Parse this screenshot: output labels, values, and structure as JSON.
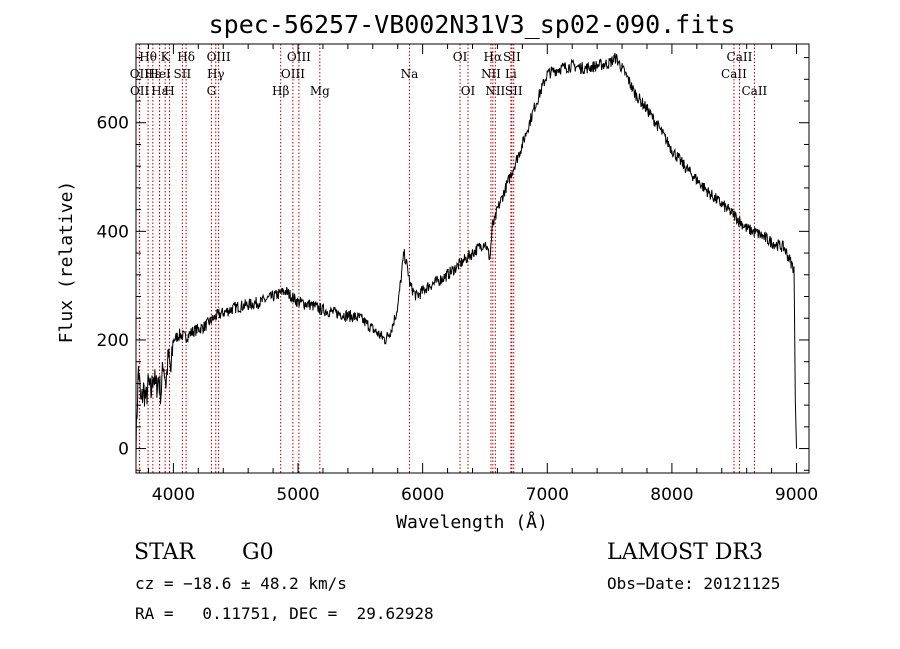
{
  "chart_data": {
    "type": "line",
    "title": "spec-56257-VB002N31V3_sp02-090.fits",
    "xlabel": "Wavelength (Å)",
    "ylabel": "Flux (relative)",
    "xlim": [
      3700,
      9100
    ],
    "ylim": [
      -45,
      745
    ],
    "xticks": [
      4000,
      5000,
      6000,
      7000,
      8000,
      9000
    ],
    "yticks": [
      0,
      200,
      400,
      600
    ],
    "series": [
      {
        "name": "flux",
        "x": [
          3700,
          3720,
          3740,
          3760,
          3780,
          3800,
          3820,
          3840,
          3860,
          3880,
          3900,
          3920,
          3940,
          3960,
          3980,
          4000,
          4050,
          4100,
          4150,
          4200,
          4250,
          4300,
          4350,
          4400,
          4450,
          4500,
          4600,
          4700,
          4800,
          4850,
          4900,
          5000,
          5100,
          5200,
          5300,
          5400,
          5500,
          5600,
          5700,
          5750,
          5800,
          5850,
          5880,
          5900,
          5950,
          6000,
          6050,
          6100,
          6200,
          6300,
          6400,
          6500,
          6540,
          6560,
          6580,
          6600,
          6650,
          6700,
          6800,
          6900,
          7000,
          7100,
          7200,
          7300,
          7400,
          7500,
          7550,
          7600,
          7650,
          7700,
          7800,
          7900,
          8000,
          8100,
          8200,
          8300,
          8400,
          8500,
          8600,
          8700,
          8800,
          8900,
          8980,
          8990,
          9000
        ],
        "values": [
          10,
          150,
          80,
          110,
          90,
          120,
          100,
          140,
          110,
          130,
          100,
          160,
          120,
          170,
          140,
          200,
          210,
          205,
          215,
          220,
          225,
          235,
          245,
          250,
          255,
          260,
          265,
          270,
          280,
          285,
          290,
          270,
          265,
          255,
          250,
          245,
          240,
          220,
          200,
          220,
          260,
          360,
          330,
          300,
          280,
          290,
          300,
          305,
          320,
          340,
          360,
          380,
          350,
          410,
          420,
          440,
          470,
          500,
          560,
          630,
          690,
          700,
          705,
          700,
          705,
          710,
          720,
          700,
          680,
          655,
          625,
          590,
          550,
          520,
          495,
          470,
          450,
          430,
          405,
          395,
          380,
          370,
          330,
          90,
          0
        ]
      }
    ],
    "lines": [
      {
        "name": "Hθ",
        "x": 3797,
        "row": 1
      },
      {
        "name": "OII",
        "x": 3727,
        "row": 2
      },
      {
        "name": "OII",
        "x": 3729,
        "row": 3
      },
      {
        "name": "Hε",
        "x": 3835,
        "row": 2
      },
      {
        "name": "Hε",
        "x": 3889,
        "row": 3
      },
      {
        "name": "K",
        "x": 3934,
        "row": 1
      },
      {
        "name": "HeI",
        "x": 3889,
        "row": 2
      },
      {
        "name": "H",
        "x": 3969,
        "row": 3
      },
      {
        "name": "Hδ",
        "x": 4102,
        "row": 1
      },
      {
        "name": "SII",
        "x": 4072,
        "row": 2
      },
      {
        "name": "OIII",
        "x": 4363,
        "row": 1
      },
      {
        "name": "Hγ",
        "x": 4340,
        "row": 2
      },
      {
        "name": "G",
        "x": 4305,
        "row": 3
      },
      {
        "name": "Hβ",
        "x": 4861,
        "row": 3
      },
      {
        "name": "OIII",
        "x": 4959,
        "row": 2
      },
      {
        "name": "OIII",
        "x": 5007,
        "row": 1
      },
      {
        "name": "Mg",
        "x": 5175,
        "row": 3
      },
      {
        "name": "Na",
        "x": 5894,
        "row": 2
      },
      {
        "name": "OI",
        "x": 6300,
        "row": 1
      },
      {
        "name": "OI",
        "x": 6364,
        "row": 3
      },
      {
        "name": "NII",
        "x": 6548,
        "row": 2
      },
      {
        "name": "Hα",
        "x": 6563,
        "row": 1
      },
      {
        "name": "NII",
        "x": 6583,
        "row": 3
      },
      {
        "name": "SII",
        "x": 6716,
        "row": 1
      },
      {
        "name": "Li",
        "x": 6708,
        "row": 2
      },
      {
        "name": "SII",
        "x": 6731,
        "row": 3
      },
      {
        "name": "CaII",
        "x": 8498,
        "row": 2
      },
      {
        "name": "CaII",
        "x": 8542,
        "row": 1
      },
      {
        "name": "CaII",
        "x": 8662,
        "row": 3
      }
    ],
    "line_color": "#b00000"
  },
  "info": {
    "object_class": "STAR",
    "subclass": "G0",
    "survey": "LAMOST DR3",
    "redshift": "cz = −18.6 ± 48.2 km/s",
    "obs_date": "Obs−Date: 20121125",
    "coords": "RA =   0.11751, DEC =  29.62928"
  }
}
